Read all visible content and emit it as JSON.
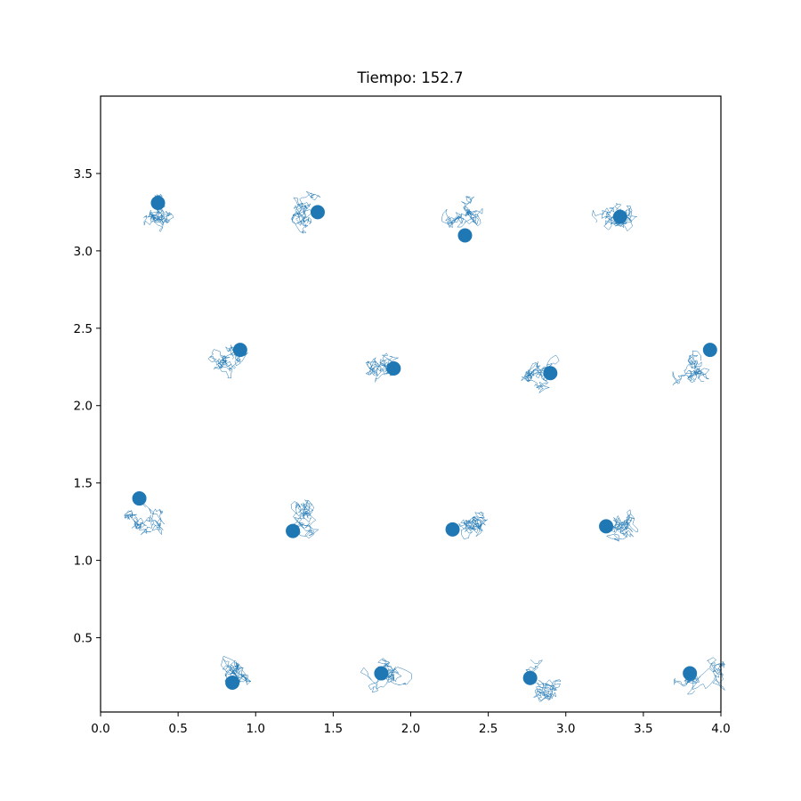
{
  "chart_data": {
    "type": "scatter",
    "title": "Tiempo: 152.7",
    "xlabel": "",
    "ylabel": "",
    "xlim": [
      0.0,
      4.0
    ],
    "ylim": [
      0.02,
      4.0
    ],
    "xticks": [
      "0.0",
      "0.5",
      "1.0",
      "1.5",
      "2.0",
      "2.5",
      "3.0",
      "3.5",
      "4.0"
    ],
    "yticks": [
      "0.5",
      "1.0",
      "1.5",
      "2.0",
      "2.5",
      "3.0",
      "3.5"
    ],
    "grid": false,
    "color": "#1f77b4",
    "series": [
      {
        "points": [
          {
            "x": 0.37,
            "y": 3.31
          },
          {
            "x": 1.4,
            "y": 3.25
          },
          {
            "x": 2.35,
            "y": 3.1
          },
          {
            "x": 3.35,
            "y": 3.22
          },
          {
            "x": 0.9,
            "y": 2.36
          },
          {
            "x": 1.89,
            "y": 2.24
          },
          {
            "x": 2.9,
            "y": 2.21
          },
          {
            "x": 3.93,
            "y": 2.36
          },
          {
            "x": 0.25,
            "y": 1.4
          },
          {
            "x": 1.24,
            "y": 1.19
          },
          {
            "x": 2.27,
            "y": 1.2
          },
          {
            "x": 3.26,
            "y": 1.22
          },
          {
            "x": 0.85,
            "y": 0.21
          },
          {
            "x": 1.81,
            "y": 0.27
          },
          {
            "x": 2.77,
            "y": 0.24
          },
          {
            "x": 3.8,
            "y": 0.27
          }
        ]
      }
    ],
    "trails": [
      {
        "cx": 0.33,
        "cy": 3.22,
        "s": 0.36,
        "seed": 11
      },
      {
        "cx": 1.33,
        "cy": 3.3,
        "s": 0.4,
        "seed": 23
      },
      {
        "cx": 2.35,
        "cy": 3.23,
        "s": 0.3,
        "seed": 37
      },
      {
        "cx": 3.33,
        "cy": 3.24,
        "s": 0.32,
        "seed": 41
      },
      {
        "cx": 0.85,
        "cy": 2.3,
        "s": 0.38,
        "seed": 53
      },
      {
        "cx": 1.83,
        "cy": 2.26,
        "s": 0.42,
        "seed": 67
      },
      {
        "cx": 2.86,
        "cy": 2.24,
        "s": 0.4,
        "seed": 71
      },
      {
        "cx": 3.87,
        "cy": 2.29,
        "s": 0.36,
        "seed": 83
      },
      {
        "cx": 0.33,
        "cy": 1.25,
        "s": 0.38,
        "seed": 97
      },
      {
        "cx": 1.35,
        "cy": 1.27,
        "s": 0.38,
        "seed": 101
      },
      {
        "cx": 2.38,
        "cy": 1.22,
        "s": 0.38,
        "seed": 113
      },
      {
        "cx": 3.33,
        "cy": 1.24,
        "s": 0.34,
        "seed": 127
      },
      {
        "cx": 0.86,
        "cy": 0.26,
        "s": 0.38,
        "seed": 131
      },
      {
        "cx": 1.86,
        "cy": 0.27,
        "s": 0.44,
        "seed": 149
      },
      {
        "cx": 2.82,
        "cy": 0.21,
        "s": 0.36,
        "seed": 157
      },
      {
        "cx": 3.87,
        "cy": 0.25,
        "s": 0.34,
        "seed": 163
      }
    ]
  }
}
